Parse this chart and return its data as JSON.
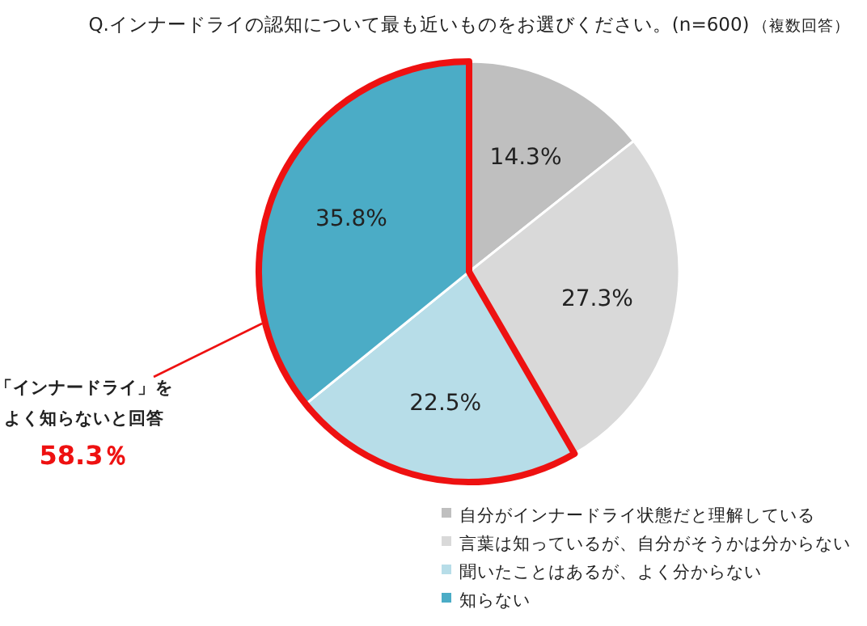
{
  "chart_data": {
    "type": "pie",
    "title": "Q.インナードライの認知について最も近いものをお選びください。(n=600)",
    "subtitle": "（複数回答）",
    "categories": [
      "自分がインナードライ状態だと理解している",
      "言葉は知っているが、自分がそうかは分からない",
      "聞いたことはあるが、よく分からない",
      "知らない"
    ],
    "values": [
      14.3,
      27.3,
      22.5,
      35.8
    ],
    "colors": [
      "#bfbfbf",
      "#d9d9d9",
      "#b7dde8",
      "#4bacc6"
    ],
    "value_labels": [
      "14.3%",
      "27.3%",
      "22.5%",
      "35.8%"
    ],
    "legend": "bottom",
    "annotations": [
      "「インナードライ」を",
      "よく知らないと回答",
      "58.3％"
    ]
  }
}
